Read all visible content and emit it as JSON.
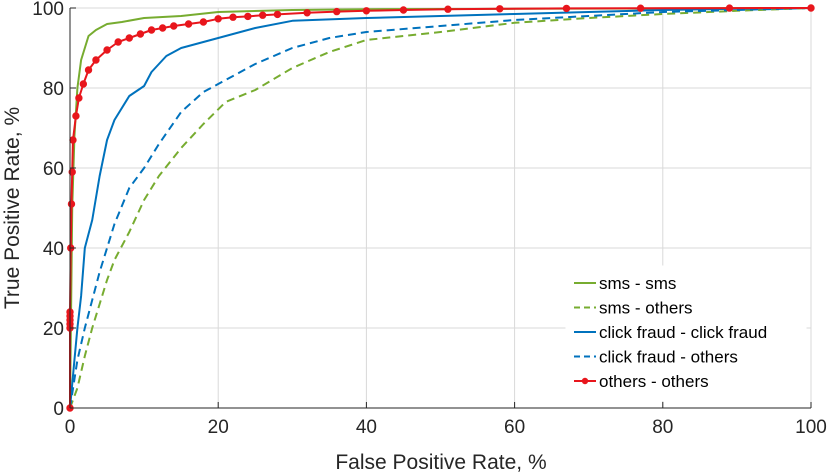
{
  "chart_data": {
    "type": "line",
    "title": "",
    "xlabel": "False Positive Rate, %",
    "ylabel": "True Positive Rate, %",
    "xlim": [
      0,
      100
    ],
    "ylim": [
      0,
      100
    ],
    "xticks": [
      0,
      20,
      40,
      60,
      80,
      100
    ],
    "yticks": [
      0,
      20,
      40,
      60,
      80,
      100
    ],
    "grid": true,
    "legend_position": "bottom-right",
    "series": [
      {
        "name": "sms - sms",
        "color": "#77ac30",
        "style": "solid",
        "marker": "none",
        "points": [
          [
            0,
            0
          ],
          [
            0.3,
            50
          ],
          [
            0.6,
            68
          ],
          [
            1,
            80
          ],
          [
            1.5,
            87
          ],
          [
            2.5,
            93
          ],
          [
            3.5,
            94.5
          ],
          [
            5,
            96
          ],
          [
            7,
            96.5
          ],
          [
            10,
            97.5
          ],
          [
            15,
            98
          ],
          [
            20,
            99
          ],
          [
            30,
            99.5
          ],
          [
            40,
            99.7
          ],
          [
            60,
            99.8
          ],
          [
            80,
            99.9
          ],
          [
            100,
            100
          ]
        ]
      },
      {
        "name": "sms - others",
        "color": "#77ac30",
        "style": "dashed",
        "marker": "none",
        "points": [
          [
            0,
            0
          ],
          [
            1,
            5
          ],
          [
            2,
            13
          ],
          [
            3,
            20
          ],
          [
            4,
            26
          ],
          [
            5,
            32
          ],
          [
            6,
            37
          ],
          [
            8,
            44
          ],
          [
            10,
            52
          ],
          [
            12,
            58
          ],
          [
            15,
            65
          ],
          [
            18,
            71
          ],
          [
            21,
            76.5
          ],
          [
            25,
            79.5
          ],
          [
            30,
            85
          ],
          [
            35,
            89
          ],
          [
            40,
            92
          ],
          [
            50,
            94
          ],
          [
            60,
            96.3
          ],
          [
            70,
            97.5
          ],
          [
            80,
            98.5
          ],
          [
            90,
            99.3
          ],
          [
            100,
            100
          ]
        ]
      },
      {
        "name": "click fraud - click fraud",
        "color": "#0072bd",
        "style": "solid",
        "marker": "none",
        "points": [
          [
            0,
            0
          ],
          [
            0.5,
            10
          ],
          [
            1,
            20
          ],
          [
            1.5,
            28
          ],
          [
            2,
            40
          ],
          [
            3,
            47
          ],
          [
            4,
            58
          ],
          [
            5,
            67
          ],
          [
            6,
            72
          ],
          [
            8,
            78
          ],
          [
            10,
            80.5
          ],
          [
            11,
            84
          ],
          [
            13,
            88
          ],
          [
            15,
            90
          ],
          [
            18,
            91.5
          ],
          [
            21,
            93
          ],
          [
            25,
            95
          ],
          [
            30,
            96.8
          ],
          [
            40,
            97.5
          ],
          [
            50,
            98
          ],
          [
            60,
            98.5
          ],
          [
            70,
            99
          ],
          [
            80,
            99.5
          ],
          [
            90,
            99.8
          ],
          [
            100,
            100
          ]
        ]
      },
      {
        "name": "click fraud - others",
        "color": "#0072bd",
        "style": "dashed",
        "marker": "none",
        "points": [
          [
            0,
            0
          ],
          [
            1,
            12
          ],
          [
            2,
            20
          ],
          [
            3,
            27
          ],
          [
            4,
            34
          ],
          [
            5,
            40
          ],
          [
            6,
            46
          ],
          [
            8,
            55
          ],
          [
            10,
            60
          ],
          [
            12,
            66
          ],
          [
            15,
            74
          ],
          [
            18,
            79
          ],
          [
            20,
            81
          ],
          [
            25,
            86
          ],
          [
            30,
            90
          ],
          [
            35,
            92.5
          ],
          [
            40,
            94
          ],
          [
            50,
            95.5
          ],
          [
            60,
            97
          ],
          [
            70,
            98
          ],
          [
            80,
            99
          ],
          [
            90,
            99.5
          ],
          [
            100,
            100
          ]
        ]
      },
      {
        "name": "others - others",
        "color": "#e8161c",
        "style": "solid",
        "marker": "circle",
        "points": [
          [
            0,
            0
          ],
          [
            0,
            20
          ],
          [
            0,
            21
          ],
          [
            0,
            22
          ],
          [
            0,
            23
          ],
          [
            0,
            24
          ],
          [
            0.1,
            40
          ],
          [
            0.2,
            51
          ],
          [
            0.3,
            59
          ],
          [
            0.4,
            67
          ],
          [
            0.8,
            73
          ],
          [
            1.2,
            77.5
          ],
          [
            1.8,
            81
          ],
          [
            2.5,
            84.5
          ],
          [
            3.5,
            87
          ],
          [
            5,
            89.5
          ],
          [
            6.5,
            91.5
          ],
          [
            8,
            92.5
          ],
          [
            9.5,
            93.5
          ],
          [
            11,
            94.5
          ],
          [
            12.5,
            95
          ],
          [
            14,
            95.5
          ],
          [
            16,
            96
          ],
          [
            18,
            96.5
          ],
          [
            20,
            97.3
          ],
          [
            22,
            97.7
          ],
          [
            24,
            97.9
          ],
          [
            26,
            98.2
          ],
          [
            28,
            98.4
          ],
          [
            32,
            98.8
          ],
          [
            36,
            99.1
          ],
          [
            40,
            99.3
          ],
          [
            45,
            99.5
          ],
          [
            51,
            99.7
          ],
          [
            58,
            99.8
          ],
          [
            67,
            99.9
          ],
          [
            77,
            99.95
          ],
          [
            89,
            99.98
          ],
          [
            100,
            100
          ]
        ]
      }
    ]
  }
}
